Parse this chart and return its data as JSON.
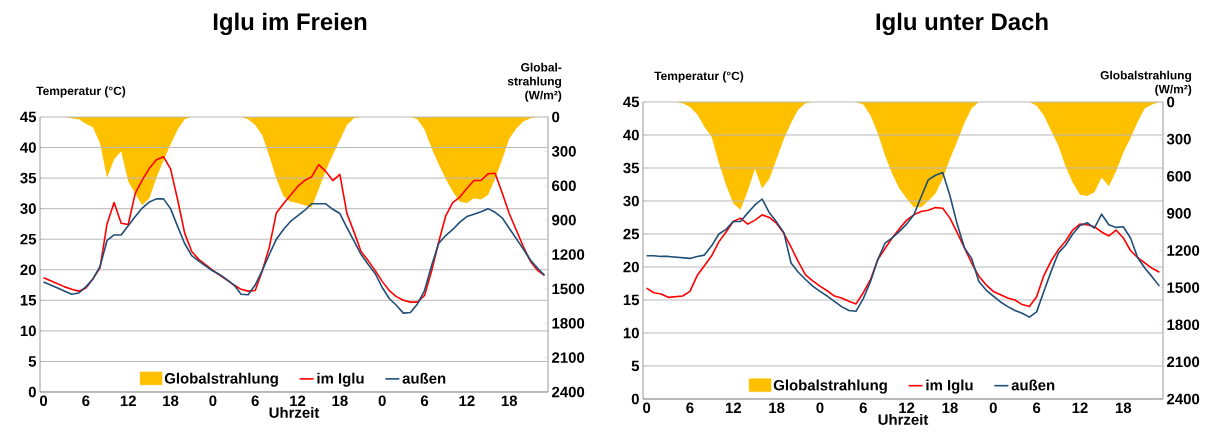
{
  "chart_data": [
    {
      "type": "line",
      "title": "Iglu im Freien",
      "xlabel": "Uhrzeit",
      "ylabel": "Temperatur (°C)",
      "y2label": "Global-strahlung (W/m²)",
      "categories": [
        "0",
        null,
        null,
        null,
        null,
        null,
        "6",
        null,
        null,
        null,
        null,
        null,
        "12",
        null,
        null,
        null,
        null,
        null,
        "18",
        null,
        null,
        null,
        null,
        null,
        "0",
        null,
        null,
        null,
        null,
        null,
        "6",
        null,
        null,
        null,
        null,
        null,
        "12",
        null,
        null,
        null,
        null,
        null,
        "18",
        null,
        null,
        null,
        null,
        null,
        "0",
        null,
        null,
        null,
        null,
        null,
        "6",
        null,
        null,
        null,
        null,
        null,
        "12",
        null,
        null,
        null,
        null,
        null,
        "18",
        null,
        null,
        null,
        null,
        null
      ],
      "ylim": [
        0,
        45
      ],
      "yticks": [
        0,
        5,
        10,
        15,
        20,
        25,
        30,
        35,
        40,
        45
      ],
      "y2lim": [
        2400,
        0
      ],
      "y2ticks": [
        0,
        300,
        600,
        900,
        1200,
        1500,
        1800,
        2100,
        2400
      ],
      "grid": "y",
      "legend": "bottom",
      "series": [
        {
          "name": "Globalstrahlung",
          "type": "area",
          "axis": "y2",
          "color": "#ffc000",
          "values": [
            0,
            0,
            0,
            0,
            10,
            20,
            60,
            90,
            230,
            530,
            370,
            300,
            560,
            670,
            770,
            710,
            530,
            380,
            240,
            110,
            20,
            0,
            0,
            0,
            0,
            0,
            0,
            0,
            0,
            20,
            70,
            160,
            340,
            540,
            690,
            740,
            750,
            770,
            790,
            630,
            470,
            330,
            200,
            70,
            10,
            0,
            0,
            0,
            0,
            0,
            0,
            0,
            0,
            20,
            110,
            270,
            410,
            540,
            650,
            740,
            750,
            710,
            720,
            680,
            540,
            370,
            190,
            100,
            40,
            10,
            0,
            0
          ]
        },
        {
          "name": "im Iglu",
          "color": "#ff0000",
          "values": [
            18.7,
            18.2,
            17.7,
            17.2,
            16.8,
            16.5,
            17.0,
            18.5,
            20.3,
            27.5,
            31.0,
            27.6,
            27.4,
            32.5,
            34.7,
            36.6,
            38.0,
            38.5,
            36.5,
            31.5,
            26.0,
            23.0,
            21.7,
            20.8,
            19.9,
            19.1,
            18.3,
            17.5,
            16.8,
            16.5,
            16.6,
            19.8,
            23.7,
            29.3,
            30.8,
            32.2,
            33.6,
            34.6,
            35.2,
            37.2,
            36.1,
            34.6,
            35.6,
            29.2,
            26.2,
            23.0,
            21.5,
            19.9,
            18.1,
            16.6,
            15.6,
            15.0,
            14.7,
            14.7,
            15.8,
            19.8,
            24.5,
            28.8,
            31.0,
            31.9,
            33.3,
            34.6,
            34.6,
            35.7,
            35.8,
            32.6,
            29.2,
            26.5,
            23.8,
            21.4,
            19.9,
            19.1
          ]
        },
        {
          "name": "außen",
          "color": "#1f4e79",
          "values": [
            18.0,
            17.5,
            17.0,
            16.5,
            16.0,
            16.2,
            17.2,
            18.5,
            20.5,
            24.8,
            25.7,
            25.7,
            27.2,
            28.7,
            30.1,
            31.1,
            31.6,
            31.6,
            30.0,
            27.1,
            24.3,
            22.3,
            21.4,
            20.6,
            19.8,
            19.2,
            18.4,
            17.5,
            16.0,
            15.9,
            17.5,
            19.9,
            22.5,
            25.0,
            26.6,
            27.9,
            28.8,
            29.7,
            30.8,
            30.8,
            30.8,
            29.9,
            29.2,
            26.9,
            24.7,
            22.5,
            20.9,
            19.4,
            17.1,
            15.3,
            14.2,
            12.9,
            13.0,
            14.4,
            16.6,
            20.7,
            24.3,
            25.6,
            26.6,
            27.8,
            28.7,
            29.1,
            29.5,
            30.0,
            29.4,
            28.5,
            26.8,
            25.1,
            23.4,
            21.6,
            20.3,
            19.1
          ]
        }
      ]
    },
    {
      "type": "line",
      "title": "Iglu unter Dach",
      "xlabel": "Uhrzeit",
      "ylabel": "Temperatur (°C)",
      "y2label": "Globalstrahlung (W/m²)",
      "categories": [
        "0",
        null,
        null,
        null,
        null,
        null,
        "6",
        null,
        null,
        null,
        null,
        null,
        "12",
        null,
        null,
        null,
        null,
        null,
        "18",
        null,
        null,
        null,
        null,
        null,
        "0",
        null,
        null,
        null,
        null,
        null,
        "6",
        null,
        null,
        null,
        null,
        null,
        "12",
        null,
        null,
        null,
        null,
        null,
        "18",
        null,
        null,
        null,
        null,
        null,
        "0",
        null,
        null,
        null,
        null,
        null,
        "6",
        null,
        null,
        null,
        null,
        null,
        "12",
        null,
        null,
        null,
        null,
        null,
        "18",
        null,
        null,
        null,
        null,
        null
      ],
      "ylim": [
        0,
        45
      ],
      "yticks": [
        0,
        5,
        10,
        15,
        20,
        25,
        30,
        35,
        40,
        45
      ],
      "y2lim": [
        2400,
        0
      ],
      "y2ticks": [
        0,
        300,
        600,
        900,
        1200,
        1500,
        1800,
        2100,
        2400
      ],
      "grid": "y",
      "legend": "bottom",
      "series": [
        {
          "name": "Globalstrahlung",
          "type": "area",
          "axis": "y2",
          "color": "#ffc000",
          "values": [
            0,
            0,
            0,
            0,
            0,
            10,
            40,
            100,
            200,
            280,
            490,
            670,
            820,
            870,
            720,
            540,
            700,
            620,
            460,
            300,
            170,
            60,
            10,
            0,
            0,
            0,
            0,
            0,
            0,
            0,
            20,
            110,
            250,
            430,
            580,
            700,
            780,
            850,
            850,
            800,
            740,
            620,
            460,
            320,
            170,
            50,
            0,
            0,
            0,
            0,
            0,
            0,
            0,
            0,
            30,
            110,
            230,
            350,
            520,
            650,
            750,
            760,
            730,
            610,
            680,
            560,
            410,
            290,
            160,
            50,
            20,
            0
          ]
        },
        {
          "name": "im Iglu",
          "color": "#ff0000",
          "values": [
            16.8,
            16.1,
            15.9,
            15.4,
            15.5,
            15.6,
            16.3,
            18.7,
            20.2,
            21.7,
            23.8,
            25.3,
            26.9,
            27.4,
            26.5,
            27.1,
            27.9,
            27.5,
            26.6,
            25.1,
            23.0,
            20.8,
            18.8,
            17.9,
            17.1,
            16.4,
            15.6,
            15.3,
            14.8,
            14.4,
            16.1,
            18.1,
            21.1,
            22.8,
            24.4,
            25.8,
            27.1,
            27.9,
            28.4,
            28.6,
            29.0,
            28.9,
            27.4,
            25.2,
            22.9,
            20.6,
            18.6,
            17.3,
            16.3,
            15.8,
            15.3,
            15.0,
            14.3,
            14.0,
            15.5,
            18.7,
            20.9,
            22.6,
            23.9,
            25.6,
            26.5,
            26.4,
            26.1,
            25.3,
            24.7,
            25.6,
            24.4,
            22.5,
            21.4,
            20.6,
            19.8,
            19.2
          ]
        },
        {
          "name": "außen",
          "color": "#1f4e79",
          "values": [
            21.7,
            21.7,
            21.6,
            21.6,
            21.5,
            21.4,
            21.3,
            21.6,
            21.8,
            23.2,
            25.0,
            25.7,
            26.9,
            26.9,
            28.2,
            29.4,
            30.3,
            28.2,
            26.8,
            25.2,
            20.6,
            19.2,
            18.1,
            17.1,
            16.3,
            15.6,
            14.8,
            14.0,
            13.4,
            13.3,
            15.2,
            17.8,
            21.1,
            23.6,
            24.4,
            25.4,
            26.5,
            27.9,
            30.6,
            33.2,
            33.9,
            34.3,
            30.8,
            26.5,
            22.9,
            21.3,
            17.8,
            16.5,
            15.6,
            14.7,
            14.0,
            13.4,
            13.0,
            12.4,
            13.2,
            16.3,
            19.3,
            22.1,
            23.3,
            25.0,
            26.3,
            26.7,
            25.9,
            28.0,
            26.4,
            26.0,
            26.1,
            24.4,
            21.4,
            19.8,
            18.5,
            17.1
          ]
        }
      ]
    }
  ]
}
